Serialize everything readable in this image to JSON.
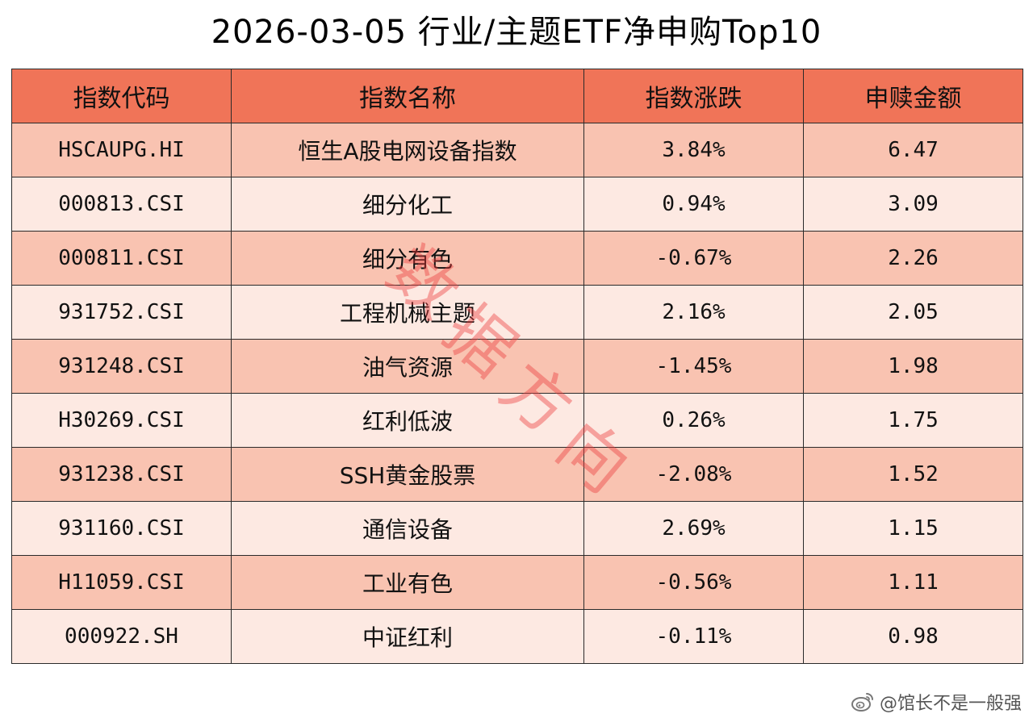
{
  "title": "2026-03-05 行业/主题ETF净申购Top10",
  "table": {
    "headers": [
      "指数代码",
      "指数名称",
      "指数涨跌",
      "申赎金额"
    ],
    "rows": [
      {
        "code": "HSCAUPG.HI",
        "name": "恒生A股电网设备指数",
        "change": "3.84%",
        "amount": "6.47"
      },
      {
        "code": "000813.CSI",
        "name": "细分化工",
        "change": "0.94%",
        "amount": "3.09"
      },
      {
        "code": "000811.CSI",
        "name": "细分有色",
        "change": "-0.67%",
        "amount": "2.26"
      },
      {
        "code": "931752.CSI",
        "name": "工程机械主题",
        "change": "2.16%",
        "amount": "2.05"
      },
      {
        "code": "931248.CSI",
        "name": "油气资源",
        "change": "-1.45%",
        "amount": "1.98"
      },
      {
        "code": "H30269.CSI",
        "name": "红利低波",
        "change": "0.26%",
        "amount": "1.75"
      },
      {
        "code": "931238.CSI",
        "name": "SSH黄金股票",
        "change": "-2.08%",
        "amount": "1.52"
      },
      {
        "code": "931160.CSI",
        "name": "通信设备",
        "change": "2.69%",
        "amount": "1.15"
      },
      {
        "code": "H11059.CSI",
        "name": "工业有色",
        "change": "-0.56%",
        "amount": "1.11"
      },
      {
        "code": "000922.SH",
        "name": "中证红利",
        "change": "-0.11%",
        "amount": "0.98"
      }
    ]
  },
  "watermark": {
    "chars": [
      "数",
      "据",
      "方",
      "向"
    ]
  },
  "credit": {
    "text": "@馆长不是一般强",
    "icon": "weibo-icon"
  },
  "colors": {
    "header_bg": "#f07458",
    "row_odd_bg": "#f9c3b1",
    "row_even_bg": "#fde9e2",
    "watermark": "#ec3c3c"
  }
}
